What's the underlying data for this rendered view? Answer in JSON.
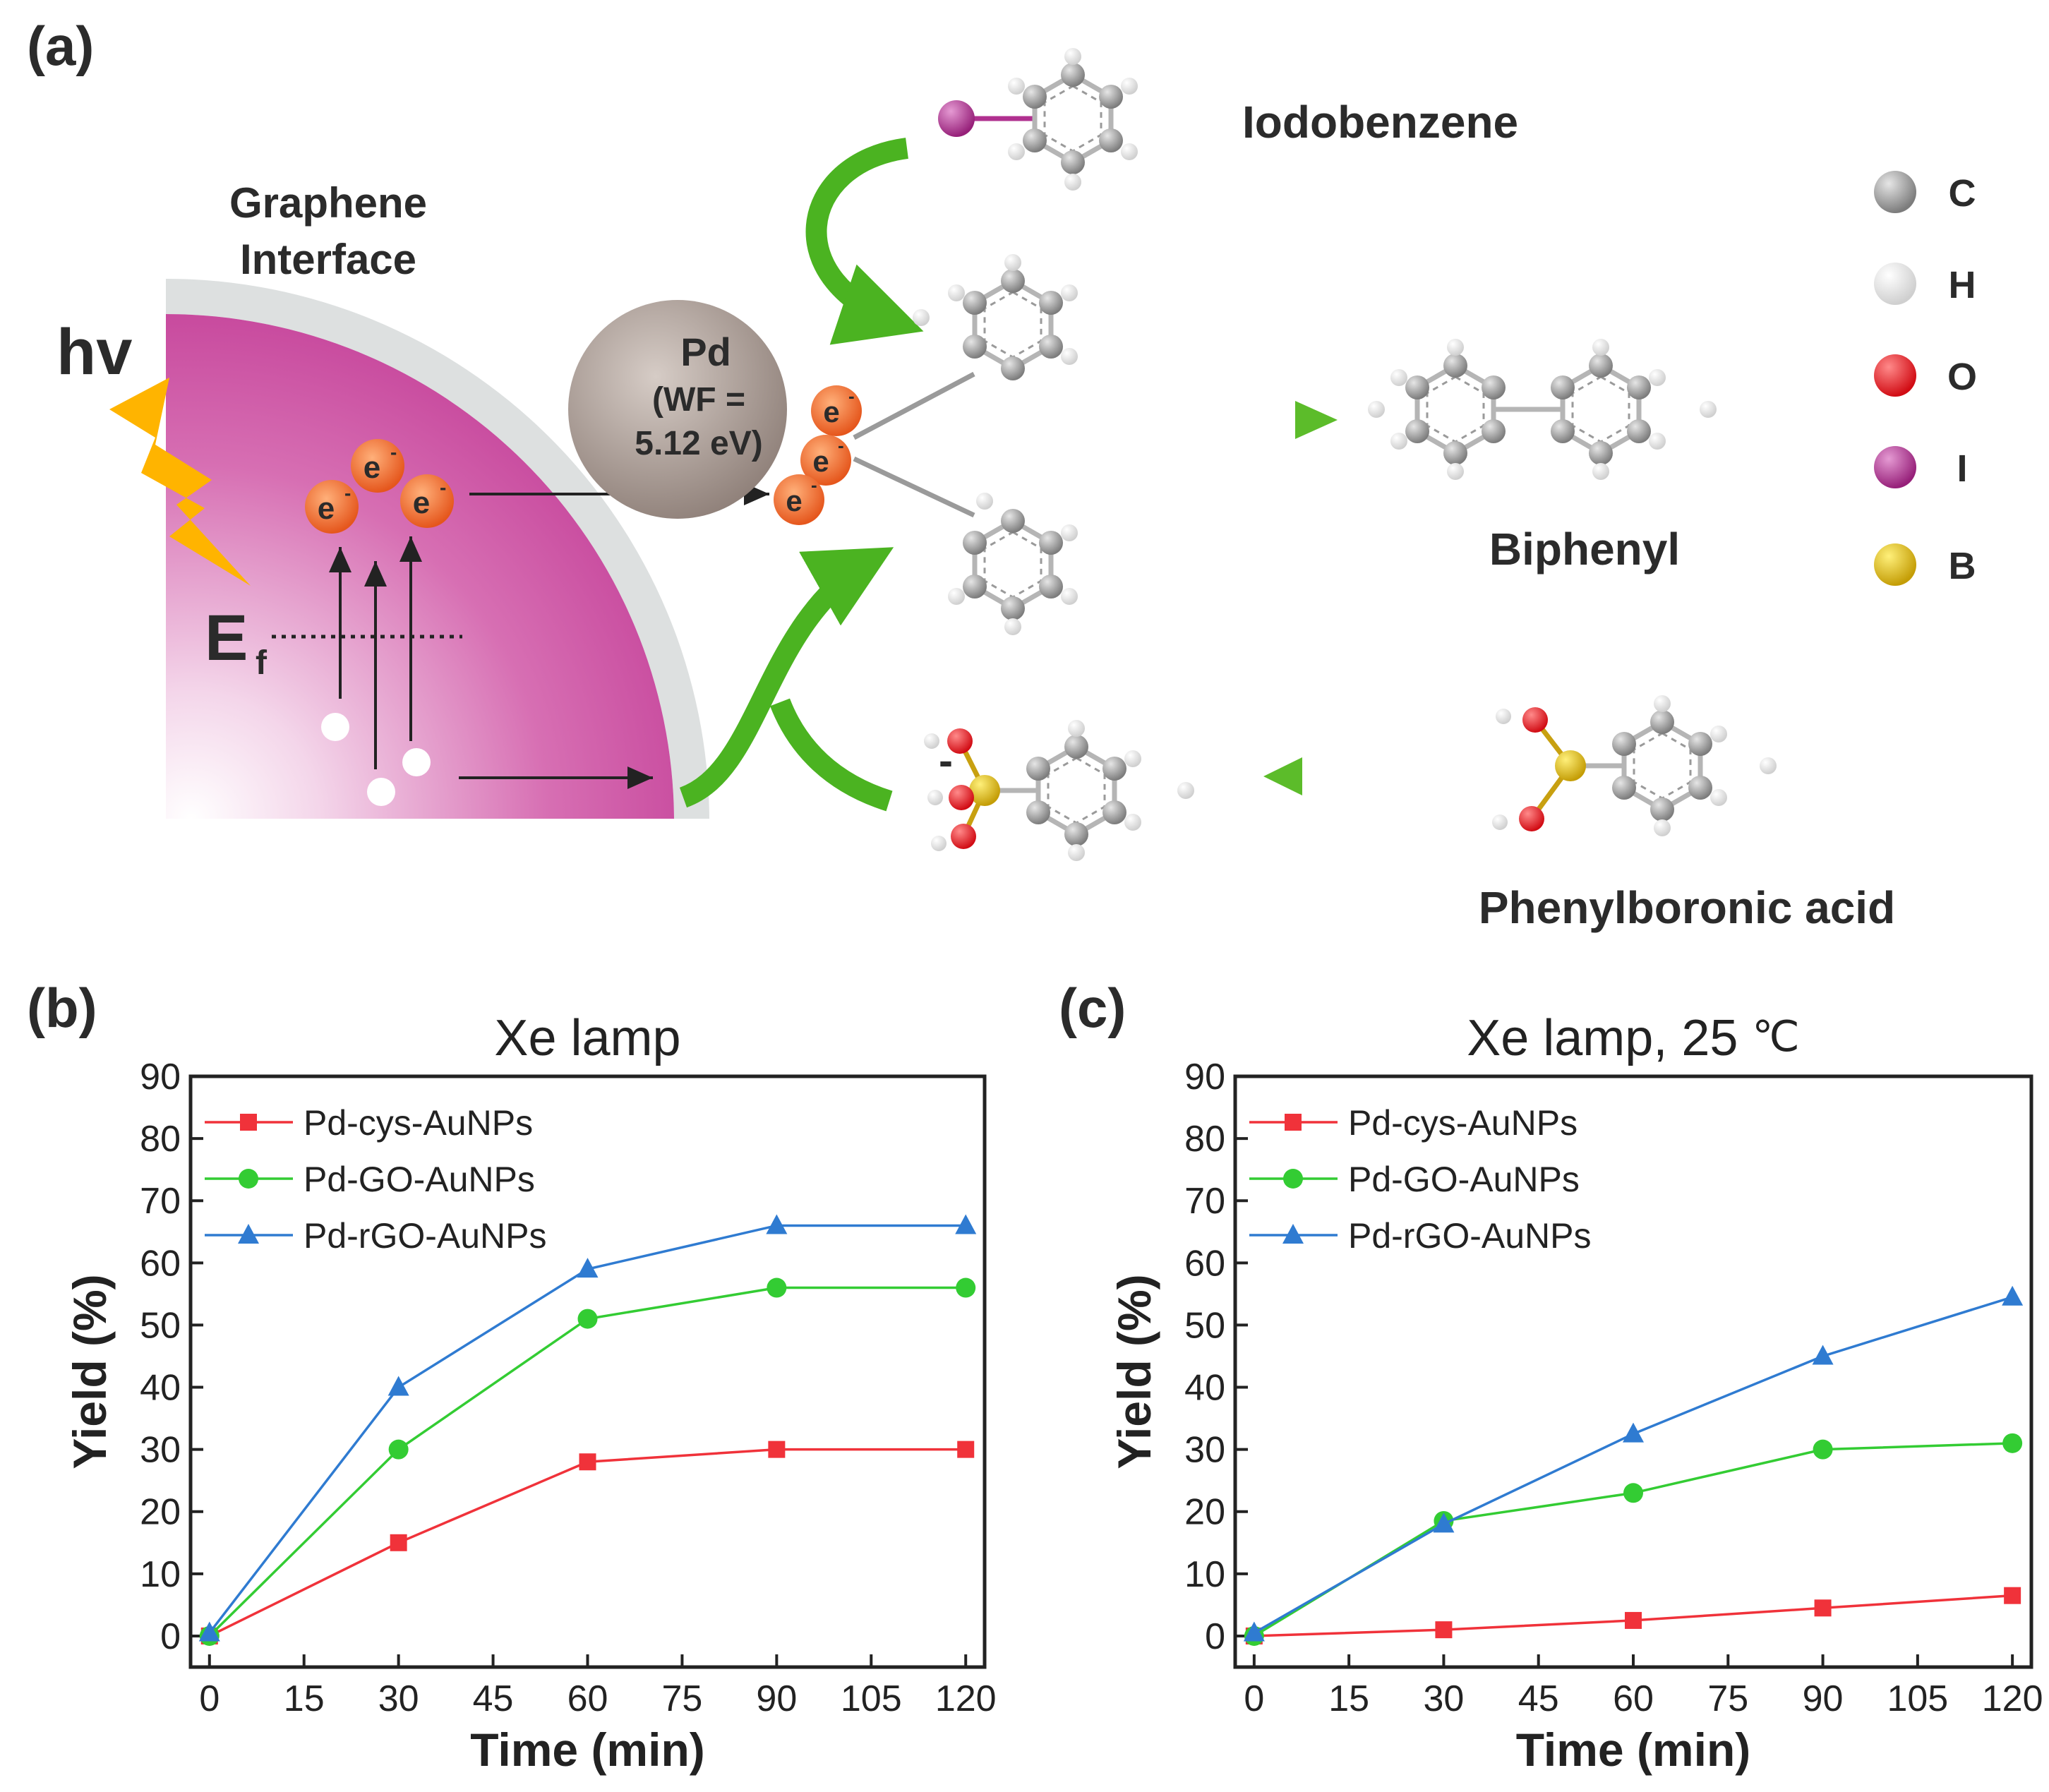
{
  "panel_a": {
    "label": "(a)",
    "graphene_label_1": "Graphene",
    "graphene_label_2": "Interface",
    "hv": "hv",
    "fermi": "E",
    "fermi_sub": "f",
    "electron": "e",
    "electron_sup": "-",
    "pd_label": "Pd",
    "pd_wf_1": "(WF =",
    "pd_wf_2": "5.12 eV)",
    "iodobenzene": "Iodobenzene",
    "biphenyl": "Biphenyl",
    "phenylboronic": "Phenylboronic acid",
    "minus": "-",
    "legend": [
      {
        "symbol": "C",
        "color": "#8a8a8a"
      },
      {
        "symbol": "H",
        "color": "#f2f2f2"
      },
      {
        "symbol": "O",
        "color": "#e8141c"
      },
      {
        "symbol": "I",
        "color": "#b0308f"
      },
      {
        "symbol": "B",
        "color": "#e2b814"
      }
    ]
  },
  "chart_data": [
    {
      "panel_label": "(b)",
      "type": "line",
      "title": "Xe lamp",
      "xlabel": "Time (min)",
      "ylabel": "Yield (%)",
      "xlim": [
        -3,
        123
      ],
      "ylim": [
        -5,
        90
      ],
      "xticks": [
        0,
        15,
        30,
        45,
        60,
        75,
        90,
        105,
        120
      ],
      "yticks": [
        0,
        10,
        20,
        30,
        40,
        50,
        60,
        70,
        80,
        90
      ],
      "x": [
        0,
        30,
        60,
        90,
        120
      ],
      "legend_position": "top-left",
      "series": [
        {
          "name": "Pd-cys-AuNPs",
          "color": "#f0323a",
          "marker": "square",
          "values": [
            0,
            15,
            28,
            30,
            30
          ]
        },
        {
          "name": "Pd-GO-AuNPs",
          "color": "#33cc33",
          "marker": "circle",
          "values": [
            0,
            30,
            51,
            56,
            56
          ]
        },
        {
          "name": "Pd-rGO-AuNPs",
          "color": "#2f7bd1",
          "marker": "triangle",
          "values": [
            0.5,
            40,
            59,
            66,
            66
          ]
        }
      ]
    },
    {
      "panel_label": "(c)",
      "type": "line",
      "title": "Xe lamp, 25 ",
      "title_unit": "℃",
      "xlabel": "Time (min)",
      "ylabel": "Yield (%)",
      "xlim": [
        -3,
        123
      ],
      "ylim": [
        -5,
        90
      ],
      "xticks": [
        0,
        15,
        30,
        45,
        60,
        75,
        90,
        105,
        120
      ],
      "yticks": [
        0,
        10,
        20,
        30,
        40,
        50,
        60,
        70,
        80,
        90
      ],
      "x": [
        0,
        30,
        60,
        90,
        120
      ],
      "legend_position": "top-left",
      "series": [
        {
          "name": "Pd-cys-AuNPs",
          "color": "#f0323a",
          "marker": "square",
          "values": [
            0,
            1,
            2.5,
            4.5,
            6.5
          ]
        },
        {
          "name": "Pd-GO-AuNPs",
          "color": "#33cc33",
          "marker": "circle",
          "values": [
            0,
            18.5,
            23,
            30,
            31
          ]
        },
        {
          "name": "Pd-rGO-AuNPs",
          "color": "#2f7bd1",
          "marker": "triangle",
          "values": [
            0.5,
            18,
            32.5,
            45,
            54.5
          ]
        }
      ]
    }
  ]
}
